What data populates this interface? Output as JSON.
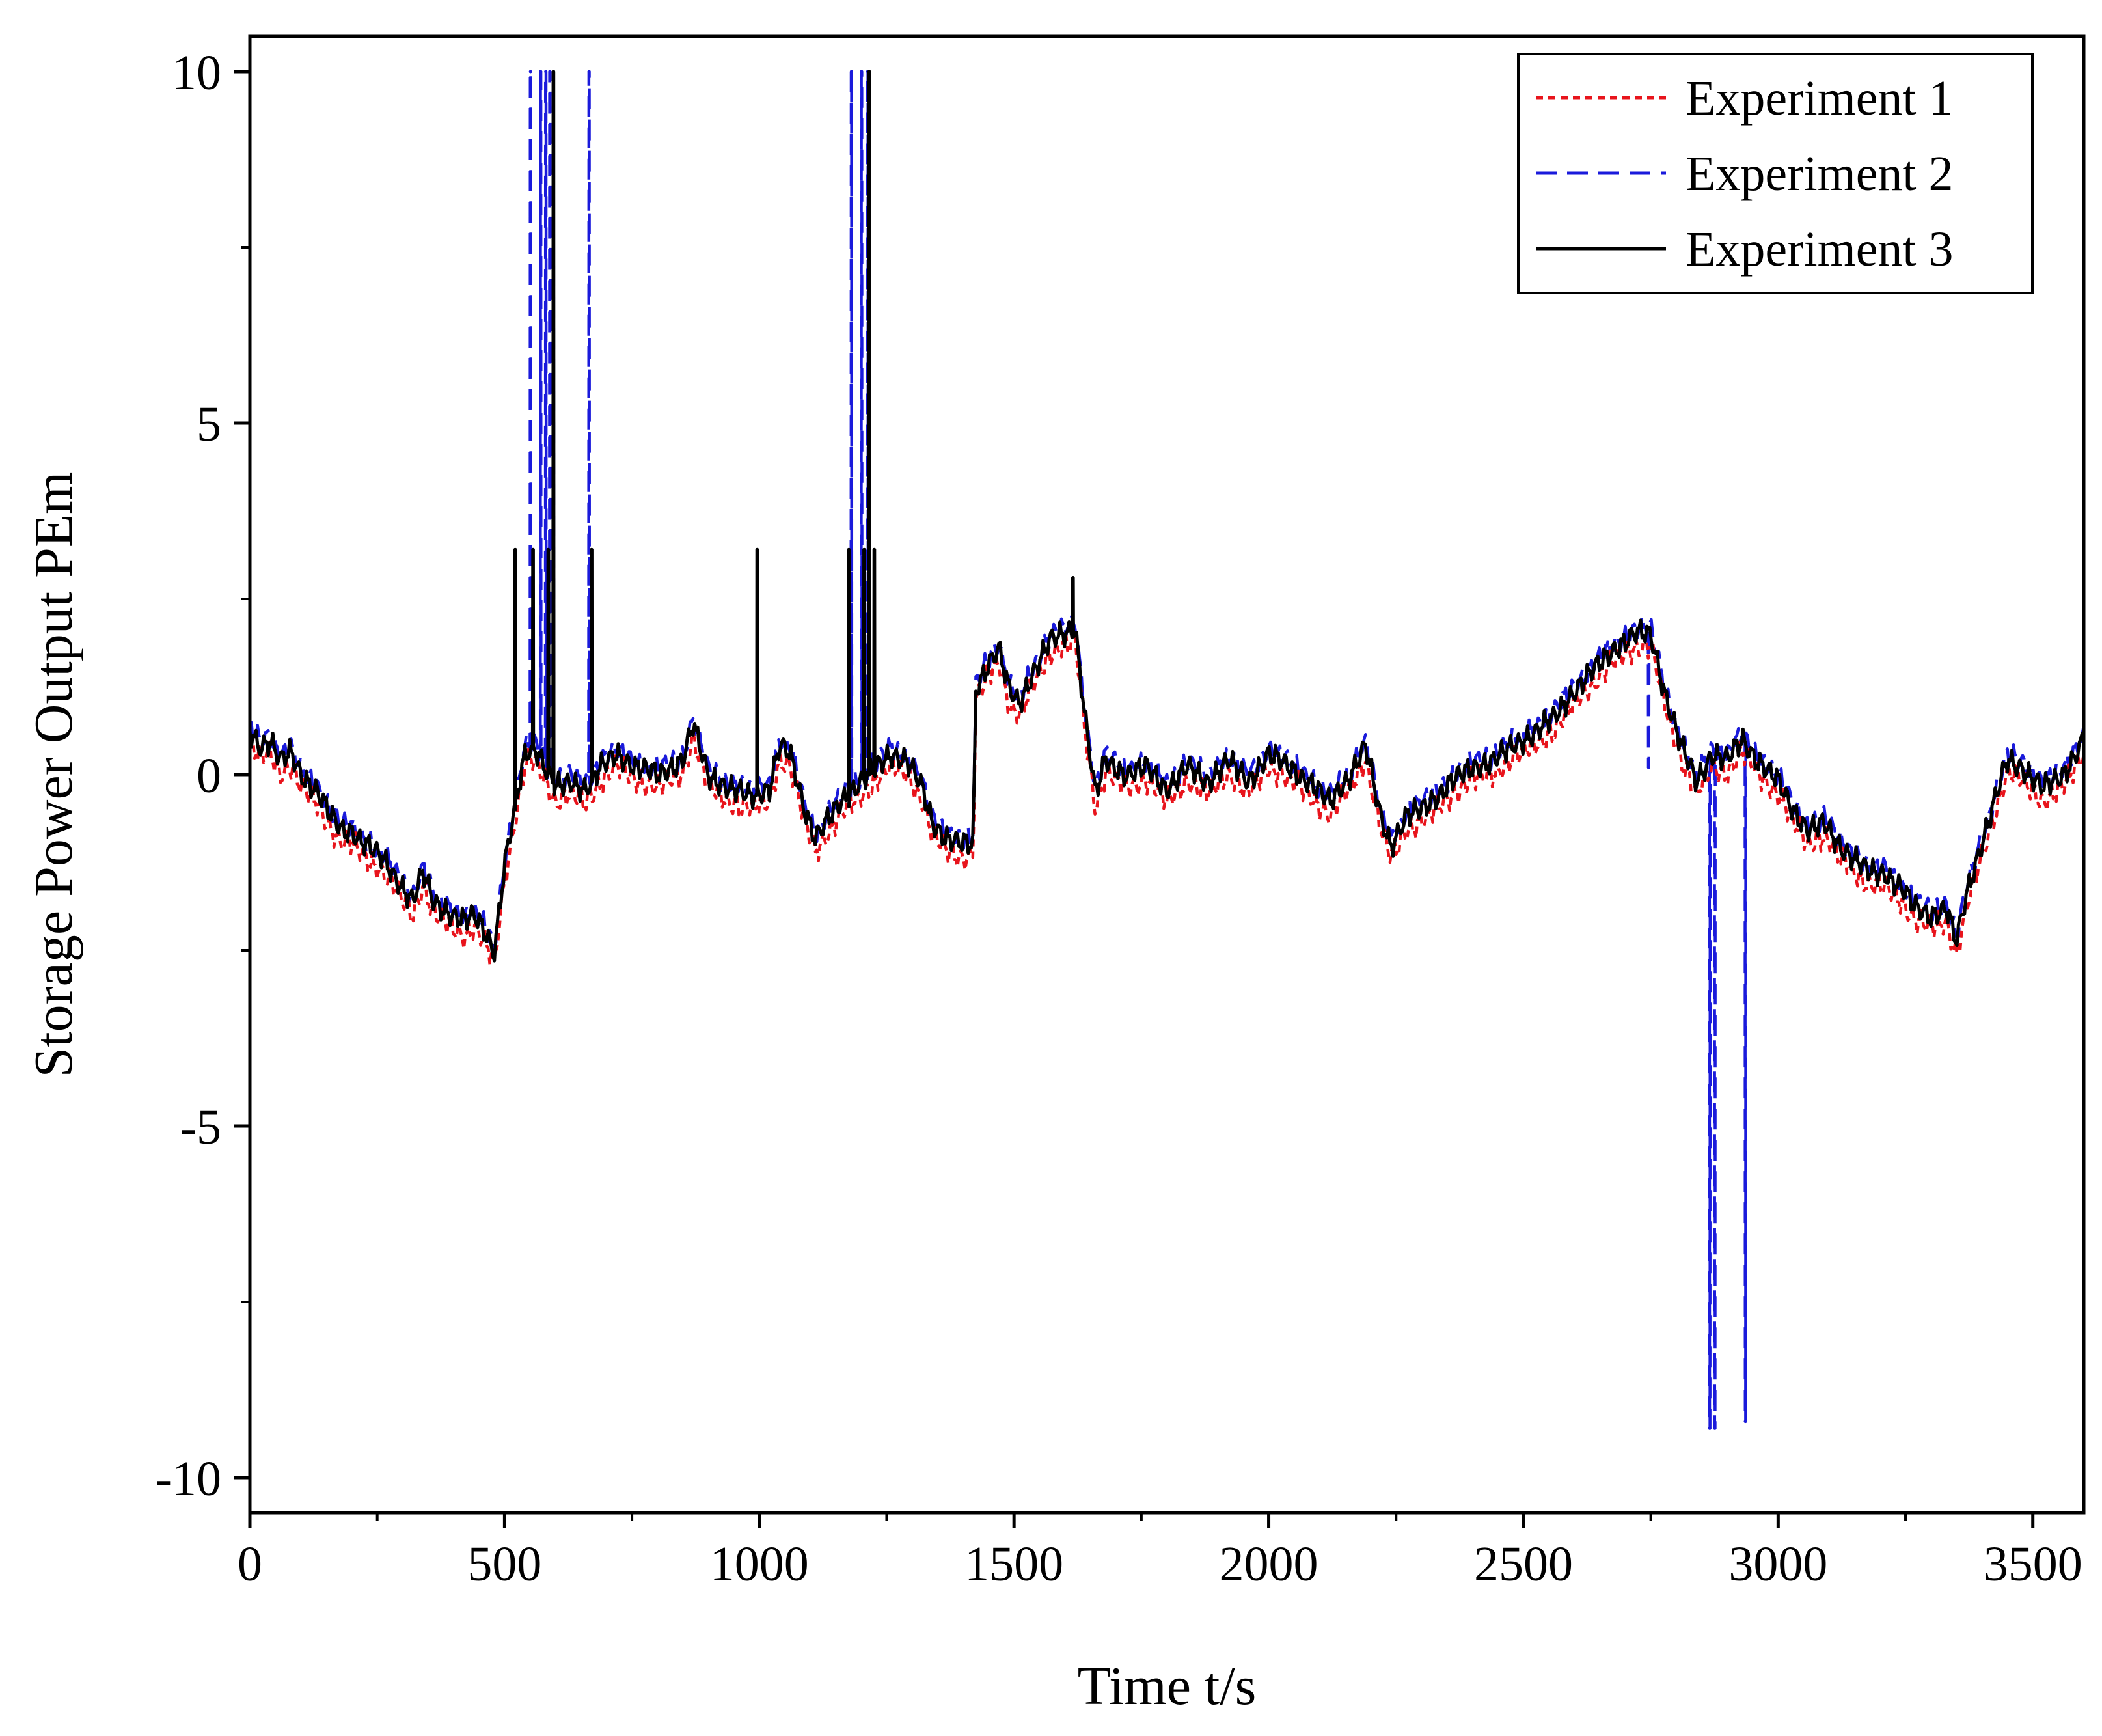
{
  "chart_data": {
    "type": "line",
    "title": "",
    "xlabel": "Time t/s",
    "ylabel": "Storage Power Output PEm",
    "xlim": [
      0,
      3600
    ],
    "ylim": [
      -10.5,
      10.5
    ],
    "x_ticks": [
      0,
      500,
      1000,
      1500,
      2000,
      2500,
      3000,
      3500
    ],
    "x_tick_labels": [
      "0",
      "500",
      "1000",
      "1500",
      "2000",
      "2500",
      "3000",
      "3500"
    ],
    "y_ticks": [
      -10,
      -5,
      0,
      5,
      10
    ],
    "y_tick_labels": [
      "-10",
      "-5",
      "0",
      "5",
      "10"
    ],
    "legend": {
      "position": "top-right",
      "entries": [
        "Experiment 1",
        "Experiment 2",
        "Experiment 3"
      ]
    },
    "colors": {
      "experiment_1": "#e8141c",
      "experiment_2": "#1a1adb",
      "experiment_3": "#000000",
      "axis": "#000000"
    },
    "base_curve": {
      "x": [
        0,
        20,
        40,
        60,
        80,
        100,
        130,
        160,
        180,
        200,
        230,
        260,
        290,
        320,
        340,
        360,
        380,
        400,
        420,
        440,
        460,
        480,
        500,
        520,
        540,
        560,
        580,
        600,
        630,
        660,
        690,
        720,
        760,
        800,
        850,
        870,
        900,
        940,
        980,
        1020,
        1040,
        1060,
        1090,
        1110,
        1140,
        1170,
        1200,
        1230,
        1260,
        1290,
        1320,
        1340,
        1370,
        1400,
        1420,
        1425,
        1450,
        1470,
        1490,
        1510,
        1540,
        1570,
        1600,
        1620,
        1640,
        1660,
        1680,
        1720,
        1760,
        1800,
        1840,
        1880,
        1920,
        1960,
        2000,
        2040,
        2080,
        2120,
        2160,
        2190,
        2220,
        2240,
        2270,
        2300,
        2330,
        2360,
        2400,
        2440,
        2480,
        2520,
        2560,
        2600,
        2640,
        2680,
        2720,
        2750,
        2780,
        2810,
        2840,
        2870,
        2900,
        2930,
        2960,
        3000,
        3030,
        3060,
        3090,
        3120,
        3150,
        3180,
        3210,
        3240,
        3270,
        3300,
        3330,
        3350,
        3370,
        3390,
        3420,
        3450,
        3480,
        3520,
        3560,
        3600
      ],
      "y": [
        0.6,
        0.4,
        0.5,
        0.2,
        0.3,
        0.0,
        -0.2,
        -0.6,
        -0.8,
        -0.8,
        -1.0,
        -1.2,
        -1.5,
        -1.8,
        -1.4,
        -1.8,
        -1.9,
        -2.0,
        -2.1,
        -2.0,
        -2.2,
        -2.5,
        -1.3,
        -0.5,
        0.3,
        0.4,
        0.1,
        -0.2,
        -0.1,
        -0.2,
        0.1,
        0.3,
        0.1,
        0.0,
        0.2,
        0.7,
        0.0,
        -0.2,
        -0.3,
        -0.2,
        0.4,
        0.3,
        -0.5,
        -0.9,
        -0.6,
        -0.3,
        -0.1,
        0.1,
        0.3,
        0.2,
        -0.2,
        -0.7,
        -0.9,
        -1.0,
        -1.0,
        1.2,
        1.6,
        1.8,
        1.2,
        1.0,
        1.5,
        1.9,
        2.0,
        2.1,
        0.8,
        -0.3,
        0.2,
        0.0,
        0.1,
        -0.2,
        0.1,
        -0.1,
        0.2,
        -0.1,
        0.3,
        0.1,
        -0.1,
        -0.4,
        0.0,
        0.4,
        -0.6,
        -1.0,
        -0.6,
        -0.5,
        -0.3,
        -0.1,
        0.1,
        0.2,
        0.4,
        0.6,
        0.8,
        1.2,
        1.5,
        1.8,
        2.0,
        2.0,
        1.1,
        0.4,
        -0.1,
        0.3,
        0.2,
        0.5,
        0.2,
        -0.1,
        -0.5,
        -0.8,
        -0.7,
        -1.0,
        -1.2,
        -1.4,
        -1.4,
        -1.6,
        -1.9,
        -2.0,
        -1.9,
        -2.4,
        -1.7,
        -1.2,
        -0.5,
        0.2,
        0.1,
        -0.2,
        0.0,
        0.5
      ]
    },
    "series": [
      {
        "name": "Experiment 1",
        "dash": "short-dash",
        "offset": -0.18,
        "noise_amplitude": 0.22,
        "spike_x": [],
        "spike_y": []
      },
      {
        "name": "Experiment 2",
        "dash": "long-dash",
        "offset": 0.08,
        "noise_amplitude": 0.2,
        "spike_x": [
          550,
          570,
          580,
          588,
          595,
          665,
          1180,
          1200,
          1212,
          2745,
          2865,
          2875,
          2935
        ],
        "spike_y": [
          10.0,
          10.0,
          10.0,
          10.0,
          10.0,
          10.0,
          10.0,
          10.0,
          10.0,
          0.1,
          -9.3,
          -9.3,
          -9.2
        ]
      },
      {
        "name": "Experiment 3",
        "dash": "solid",
        "offset": 0.0,
        "noise_amplitude": 0.22,
        "spike_x": [
          520,
          555,
          585,
          595,
          670,
          995,
          1175,
          1205,
          1215,
          1225,
          1615
        ],
        "spike_y": [
          3.2,
          3.2,
          3.2,
          10.0,
          3.2,
          3.2,
          3.2,
          3.2,
          10.0,
          3.2,
          2.8
        ]
      }
    ]
  }
}
